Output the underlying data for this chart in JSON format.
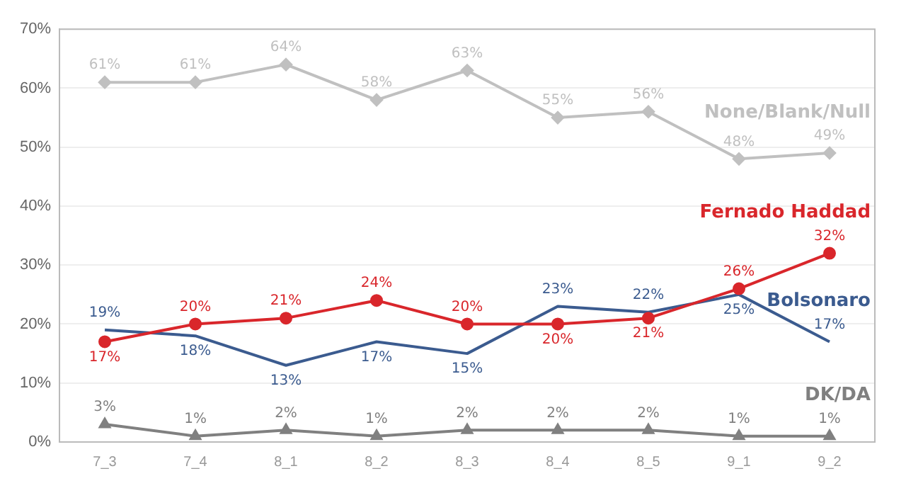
{
  "chart_data": {
    "type": "line",
    "categories": [
      "7_3",
      "7_4",
      "8_1",
      "8_2",
      "8_3",
      "8_4",
      "8_5",
      "9_1",
      "9_2"
    ],
    "series": [
      {
        "name": "None/Blank/Null",
        "color": "#c0c0c0",
        "marker": "diamond",
        "values": [
          61,
          61,
          64,
          58,
          63,
          55,
          56,
          48,
          49
        ],
        "value_labels": [
          "61%",
          "61%",
          "64%",
          "58%",
          "63%",
          "55%",
          "56%",
          "48%",
          "49%"
        ]
      },
      {
        "name": "Fernado Haddad",
        "color": "#d9262b",
        "marker": "circle",
        "values": [
          17,
          20,
          21,
          24,
          20,
          20,
          21,
          26,
          32
        ],
        "value_labels": [
          "17%",
          "20%",
          "21%",
          "24%",
          "20%",
          "20%",
          "21%",
          "26%",
          "32%"
        ]
      },
      {
        "name": "Bolsonaro",
        "color": "#3b5b8f",
        "marker": "none",
        "values": [
          19,
          18,
          13,
          17,
          15,
          23,
          22,
          25,
          17
        ],
        "value_labels": [
          "19%",
          "18%",
          "13%",
          "17%",
          "15%",
          "23%",
          "22%",
          "25%",
          "17%"
        ]
      },
      {
        "name": "DK/DA",
        "color": "#808080",
        "marker": "triangle",
        "values": [
          3,
          1,
          2,
          1,
          2,
          2,
          2,
          1,
          1
        ],
        "value_labels": [
          "3%",
          "1%",
          "2%",
          "1%",
          "2%",
          "2%",
          "2%",
          "1%",
          "1%"
        ]
      }
    ],
    "ylim": [
      0,
      70
    ],
    "yticks": [
      {
        "value": 0,
        "label": "0%"
      },
      {
        "value": 10,
        "label": "10%"
      },
      {
        "value": 20,
        "label": "20%"
      },
      {
        "value": 30,
        "label": "30%"
      },
      {
        "value": 40,
        "label": "40%"
      },
      {
        "value": 50,
        "label": "50%"
      },
      {
        "value": 60,
        "label": "60%"
      },
      {
        "value": 70,
        "label": "70%"
      }
    ],
    "grid": "y",
    "legend": false,
    "line_style": "solid"
  }
}
